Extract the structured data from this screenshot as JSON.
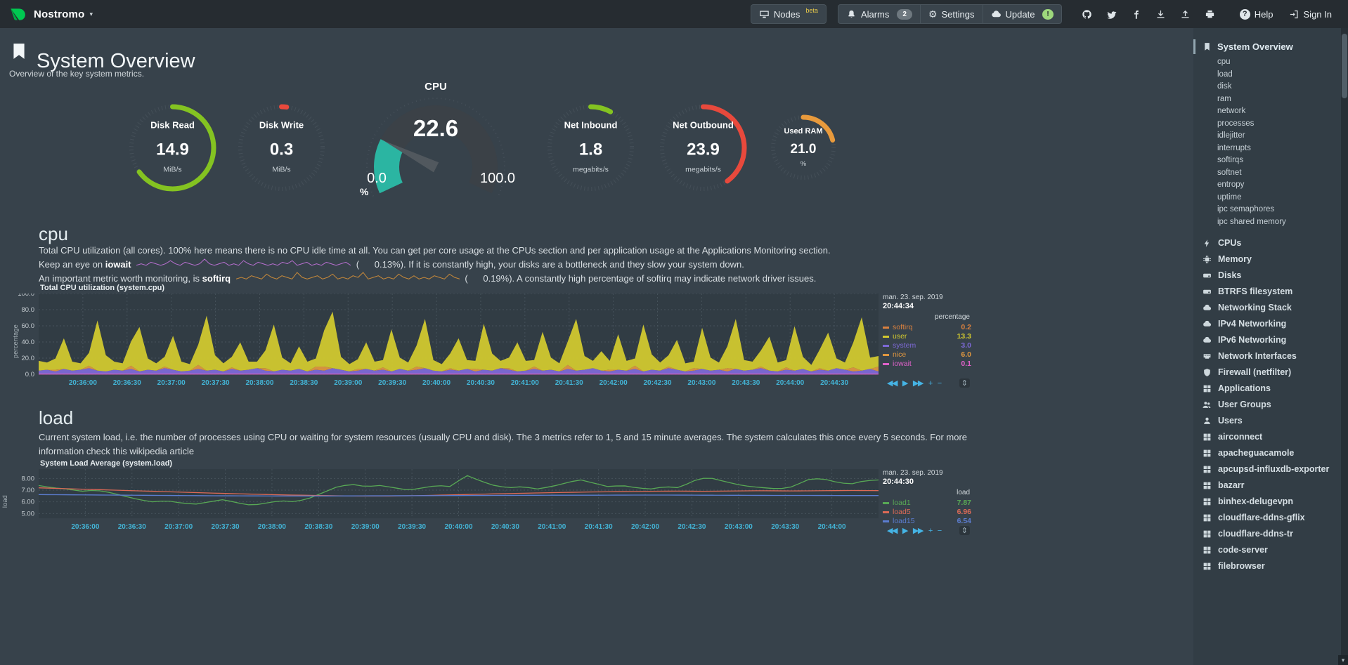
{
  "header": {
    "brand": "Nostromo",
    "caret": "▾",
    "nodes_label": "Nodes",
    "nodes_beta": "beta",
    "alarms_label": "Alarms",
    "alarms_count": "2",
    "gear_icon": "⚙",
    "settings_label": "Settings",
    "update_label": "Update",
    "update_badge": "!",
    "help_icon": "?",
    "help_label": "Help",
    "signin_label": "Sign In"
  },
  "page": {
    "title": "System Overview",
    "subtitle": "Overview of the key system metrics."
  },
  "gauges": [
    {
      "id": "disk-read",
      "type": "pie",
      "title": "Disk Read",
      "value": "14.9",
      "unit": "MiB/s",
      "color": "#84c321",
      "fraction": 0.65
    },
    {
      "id": "disk-write",
      "type": "pie",
      "title": "Disk Write",
      "value": "0.3",
      "unit": "MiB/s",
      "color": "#e8493c",
      "fraction": 0.02
    },
    {
      "id": "cpu",
      "type": "gauge",
      "title": "CPU",
      "value": "22.6",
      "min": "0.0",
      "max": "100.0",
      "unit": "%",
      "color": "#2bb5a2",
      "fraction": 0.226
    },
    {
      "id": "net-inbound",
      "type": "pie",
      "title": "Net Inbound",
      "value": "1.8",
      "unit": "megabits/s",
      "color": "#84c321",
      "fraction": 0.08
    },
    {
      "id": "net-outbound",
      "type": "pie",
      "title": "Net Outbound",
      "value": "23.9",
      "unit": "megabits/s",
      "color": "#e8493c",
      "fraction": 0.4
    },
    {
      "id": "used-ram",
      "type": "pie",
      "title": "Used RAM",
      "value": "21.0",
      "unit": "%",
      "color": "#e89a3c",
      "fraction": 0.21,
      "small": true
    }
  ],
  "cpu_section": {
    "heading": "cpu",
    "p1": "Total CPU utilization (all cores). 100% here means there is no CPU idle time at all. You can get per core usage at the CPUs section and per application usage at the Applications Monitoring section.",
    "p2_a": "Keep an eye on",
    "p2_b": "iowait",
    "p2_c": "(      0.13%). If it is constantly high, your disks are a bottleneck and they slow your system down.",
    "p3_a": "An important metric worth monitoring, is",
    "p3_b": "softirq",
    "p3_c": "(      0.19%). A constantly high percentage of softirq may indicate network driver issues."
  },
  "load_section": {
    "heading": "load",
    "p1": "Current system load, i.e. the number of processes using CPU or waiting for system resources (usually CPU and disk). The 3 metrics refer to 1, 5 and 15 minute averages. The system calculates this once every 5 seconds. For more information check this wikipedia article"
  },
  "chart_ui": {
    "rewind": "◀◀",
    "play": "▶",
    "forward": "▶▶",
    "zoom_in": "+",
    "zoom_out": "−",
    "resize": "⇕"
  },
  "sidebar": {
    "active": {
      "label": "System Overview",
      "icon": "bookmark"
    },
    "submenu": [
      "cpu",
      "load",
      "disk",
      "ram",
      "network",
      "processes",
      "idlejitter",
      "interrupts",
      "softirqs",
      "softnet",
      "entropy",
      "uptime",
      "ipc semaphores",
      "ipc shared memory"
    ],
    "items": [
      {
        "label": "CPUs",
        "icon": "bolt"
      },
      {
        "label": "Memory",
        "icon": "chip"
      },
      {
        "label": "Disks",
        "icon": "hdd"
      },
      {
        "label": "BTRFS filesystem",
        "icon": "hdd"
      },
      {
        "label": "Networking Stack",
        "icon": "cloud"
      },
      {
        "label": "IPv4 Networking",
        "icon": "cloud"
      },
      {
        "label": "IPv6 Networking",
        "icon": "cloud"
      },
      {
        "label": "Network Interfaces",
        "icon": "port"
      },
      {
        "label": "Firewall (netfilter)",
        "icon": "shield"
      },
      {
        "label": "Applications",
        "icon": "grid"
      },
      {
        "label": "User Groups",
        "icon": "users"
      },
      {
        "label": "Users",
        "icon": "user"
      },
      {
        "label": "airconnect",
        "icon": "app"
      },
      {
        "label": "apacheguacamole",
        "icon": "app"
      },
      {
        "label": "apcupsd-influxdb-exporter",
        "icon": "app"
      },
      {
        "label": "bazarr",
        "icon": "app"
      },
      {
        "label": "binhex-delugevpn",
        "icon": "app"
      },
      {
        "label": "cloudflare-ddns-gflix",
        "icon": "app"
      },
      {
        "label": "cloudflare-ddns-tr",
        "icon": "app"
      },
      {
        "label": "code-server",
        "icon": "app"
      },
      {
        "label": "filebrowser",
        "icon": "app"
      }
    ]
  },
  "chart_data": [
    {
      "id": "chart-cpu",
      "type": "area",
      "title": "Total CPU utilization (system.cpu)",
      "ylabel": "percentage",
      "unit": "percentage",
      "date_top": "man. 23. sep. 2019",
      "date_bottom": "20:44:34",
      "ylim": [
        0,
        100
      ],
      "yticks": [
        100,
        80,
        60,
        40,
        20,
        0
      ],
      "ytick_labels": [
        "100.0",
        "80.0",
        "60.0",
        "40.0",
        "20.0",
        "0.0"
      ],
      "xticks": [
        "20:36:00",
        "20:36:30",
        "20:37:00",
        "20:37:30",
        "20:38:00",
        "20:38:30",
        "20:39:00",
        "20:39:30",
        "20:40:00",
        "20:40:30",
        "20:41:00",
        "20:41:30",
        "20:42:00",
        "20:42:30",
        "20:43:00",
        "20:43:30",
        "20:44:00",
        "20:44:30"
      ],
      "stack": [
        "softirq",
        "system",
        "nice",
        "user"
      ],
      "series": [
        {
          "name": "softirq",
          "color": "#d9813f",
          "last": "0.2",
          "values": 0.6
        },
        {
          "name": "user",
          "color": "#d1c82f",
          "last": "13.3",
          "values": [
            12,
            9,
            14,
            38,
            11,
            8,
            16,
            62,
            20,
            10,
            9,
            30,
            55,
            14,
            9,
            12,
            42,
            12,
            8,
            25,
            68,
            18,
            10,
            13,
            35,
            10,
            8,
            22,
            58,
            15,
            9,
            28,
            12,
            10,
            45,
            70,
            16,
            9,
            12,
            33,
            11,
            9,
            52,
            14,
            10,
            26,
            61,
            13,
            9,
            18,
            40,
            11,
            10,
            57,
            21,
            9,
            13,
            36,
            12,
            8,
            48,
            15,
            10,
            29,
            64,
            17,
            9,
            24,
            11,
            44,
            12,
            9,
            58,
            19,
            10,
            14,
            37,
            10,
            8,
            51,
            16,
            9,
            27,
            62,
            13,
            10,
            20,
            42,
            11,
            9,
            55,
            15,
            8,
            23,
            47,
            12,
            9,
            31,
            66,
            14,
            13
          ]
        },
        {
          "name": "system",
          "color": "#7d69d6",
          "last": "3.0",
          "values": [
            4,
            5,
            3,
            6,
            4,
            5,
            7,
            4,
            3,
            5,
            4,
            6,
            3,
            5,
            4,
            7,
            5,
            3,
            4,
            6,
            4,
            5,
            3,
            6,
            4,
            5,
            7,
            4,
            3,
            5,
            4,
            6,
            3,
            5,
            4,
            7,
            5,
            3,
            4,
            6,
            4,
            5,
            3,
            6,
            4,
            5,
            7,
            4,
            3,
            5,
            4,
            6,
            3,
            5,
            4,
            7,
            5,
            3,
            4,
            6,
            4,
            5,
            3,
            6,
            4,
            5,
            7,
            4,
            3,
            5,
            4,
            6,
            3,
            5,
            4,
            7,
            5,
            3,
            4,
            6,
            4,
            5,
            3,
            6,
            4,
            5,
            7,
            4,
            3,
            5,
            4,
            6,
            3,
            5,
            4,
            7,
            5,
            3,
            4,
            6,
            3
          ]
        },
        {
          "name": "nice",
          "color": "#de9640",
          "last": "6.0",
          "values": [
            0,
            0,
            2,
            0,
            0,
            0,
            3,
            0,
            0,
            0,
            0,
            4,
            0,
            0,
            0,
            2,
            0,
            0,
            0,
            5,
            0,
            0,
            0,
            2,
            0,
            0,
            0,
            3,
            0,
            0,
            0,
            0,
            0,
            4,
            5,
            0,
            0,
            0,
            2,
            0,
            0,
            3,
            0,
            0,
            0,
            4,
            0,
            0,
            0,
            2,
            0,
            0,
            3,
            0,
            0,
            0,
            2,
            0,
            0,
            3,
            0,
            0,
            0,
            5,
            0,
            0,
            0,
            0,
            2,
            0,
            0,
            4,
            0,
            0,
            0,
            2,
            0,
            0,
            3,
            0,
            0,
            0,
            4,
            0,
            0,
            0,
            2,
            0,
            0,
            3,
            0,
            0,
            0,
            2,
            0,
            0,
            0,
            5,
            0,
            0,
            6
          ]
        },
        {
          "name": "iowait",
          "color": "#dd61c8",
          "last": "0.1",
          "values": 0.2,
          "line": true
        }
      ]
    },
    {
      "id": "chart-load",
      "type": "line",
      "title": "System Load Average (system.load)",
      "ylabel": "load",
      "unit": "load",
      "date_top": "man. 23. sep. 2019",
      "date_bottom": "20:44:30",
      "ylim": [
        4.6,
        8.8
      ],
      "yticks": [
        8,
        7,
        6,
        5
      ],
      "ytick_labels": [
        "8.00",
        "7.00",
        "6.00",
        "5.00"
      ],
      "xticks": [
        "20:36:00",
        "20:36:30",
        "20:37:00",
        "20:37:30",
        "20:38:00",
        "20:38:30",
        "20:39:00",
        "20:39:30",
        "20:40:00",
        "20:40:30",
        "20:41:00",
        "20:41:30",
        "20:42:00",
        "20:42:30",
        "20:43:00",
        "20:43:30",
        "20:44:00"
      ],
      "series": [
        {
          "name": "load1",
          "color": "#58a855",
          "last": "7.87",
          "line": true,
          "values": [
            7.4,
            7.2,
            7.1,
            6.9,
            7.0,
            6.8,
            6.5,
            6.2,
            6.0,
            6.1,
            5.9,
            5.8,
            6.0,
            6.2,
            5.9,
            5.7,
            5.9,
            6.1,
            6.0,
            6.3,
            6.8,
            7.3,
            7.5,
            7.3,
            7.4,
            7.2,
            7.0,
            7.2,
            7.4,
            7.3,
            8.3,
            7.8,
            7.4,
            7.2,
            7.3,
            7.1,
            7.3,
            7.6,
            7.9,
            7.6,
            7.3,
            7.4,
            7.2,
            7.1,
            7.3,
            7.2,
            7.8,
            8.1,
            7.8,
            7.5,
            7.3,
            7.2,
            7.1,
            7.3,
            7.9,
            8.0,
            7.7,
            7.5,
            7.8,
            7.87
          ]
        },
        {
          "name": "load5",
          "color": "#dd6a56",
          "last": "6.96",
          "line": true,
          "values": [
            7.2,
            7.12,
            7.05,
            6.97,
            6.9,
            6.82,
            6.75,
            6.68,
            6.62,
            6.57,
            6.53,
            6.5,
            6.5,
            6.53,
            6.58,
            6.64,
            6.7,
            6.75,
            6.8,
            6.84,
            6.87,
            6.9,
            6.92,
            6.9,
            6.93,
            6.95,
            6.93,
            6.95,
            6.97,
            6.96
          ]
        },
        {
          "name": "load15",
          "color": "#5c7dd0",
          "last": "6.54",
          "line": true,
          "values": [
            6.62,
            6.6,
            6.58,
            6.56,
            6.54,
            6.52,
            6.51,
            6.5,
            6.5,
            6.51,
            6.52,
            6.53,
            6.54,
            6.55,
            6.56,
            6.57,
            6.57,
            6.58,
            6.58,
            6.57,
            6.56,
            6.55,
            6.55,
            6.54,
            6.54
          ]
        }
      ]
    },
    {
      "id": "spark-iowait",
      "type": "sparkline",
      "color": "#b86fd0",
      "values": [
        1,
        2,
        1,
        3,
        2,
        1,
        2,
        4,
        2,
        1,
        3,
        2,
        1,
        2,
        5,
        2,
        1,
        2,
        3,
        1,
        2,
        1,
        4,
        2,
        1,
        3,
        2,
        1,
        2,
        1,
        3,
        2,
        4,
        1,
        2,
        3,
        1,
        2,
        1,
        3,
        2,
        1,
        2,
        3,
        1
      ]
    },
    {
      "id": "spark-softirq",
      "type": "sparkline",
      "color": "#c98a3a",
      "values": [
        2,
        3,
        2,
        4,
        3,
        2,
        5,
        3,
        2,
        4,
        3,
        2,
        6,
        3,
        2,
        3,
        4,
        2,
        3,
        5,
        2,
        3,
        2,
        4,
        3,
        6,
        2,
        3,
        4,
        2,
        3,
        2,
        5,
        3,
        2,
        4,
        2,
        3,
        2,
        4,
        3,
        2,
        5,
        3,
        2
      ]
    }
  ]
}
